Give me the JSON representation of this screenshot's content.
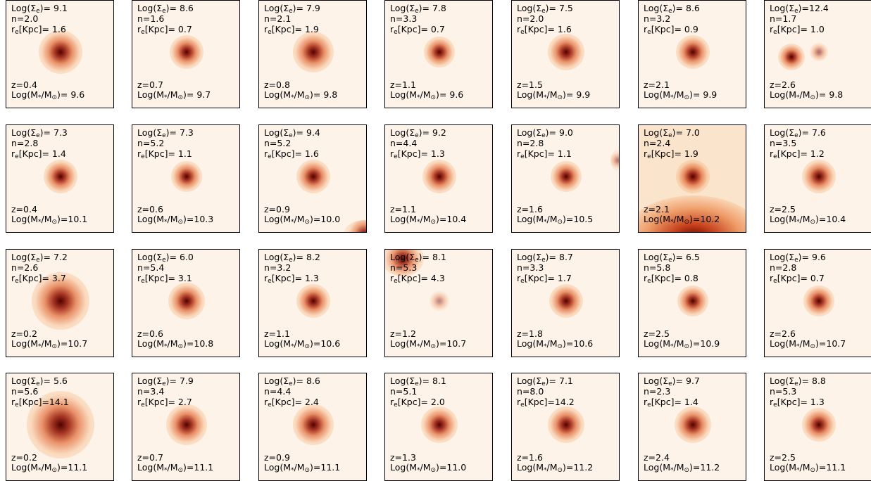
{
  "row_h": 177,
  "panels": [
    {
      "sigma": "9.1",
      "n": "2.0",
      "re": "1.6",
      "z": "0.4",
      "mass": "9.6"
    },
    {
      "sigma": "8.6",
      "n": "1.6",
      "re": "0.7",
      "z": "0.7",
      "mass": "9.7"
    },
    {
      "sigma": "7.9",
      "n": "2.1",
      "re": "1.9",
      "z": "0.8",
      "mass": "9.8"
    },
    {
      "sigma": "7.8",
      "n": "3.3",
      "re": "0.7",
      "z": "1.1",
      "mass": "9.6"
    },
    {
      "sigma": "7.5",
      "n": "2.0",
      "re": "1.6",
      "z": "1.5",
      "mass": "9.9"
    },
    {
      "sigma": "8.6",
      "n": "3.2",
      "re": "0.9",
      "z": "2.1",
      "mass": "9.9"
    },
    {
      "sigma": "12.4",
      "n": "1.7",
      "re": "1.0",
      "z": "2.6",
      "mass": "9.8"
    },
    {
      "sigma": "7.3",
      "n": "2.8",
      "re": "1.4",
      "z": "0.4",
      "mass": "10.1"
    },
    {
      "sigma": "7.3",
      "n": "5.2",
      "re": "1.1",
      "z": "0.6",
      "mass": "10.3"
    },
    {
      "sigma": "9.4",
      "n": "5.2",
      "re": "1.6",
      "z": "0.9",
      "mass": "10.0"
    },
    {
      "sigma": "9.2",
      "n": "4.4",
      "re": "1.3",
      "z": "1.1",
      "mass": "10.4"
    },
    {
      "sigma": "9.0",
      "n": "2.8",
      "re": "1.1",
      "z": "1.6",
      "mass": "10.5"
    },
    {
      "sigma": "7.0",
      "n": "2.4",
      "re": "1.9",
      "z": "2.1",
      "mass": "10.2"
    },
    {
      "sigma": "7.6",
      "n": "3.5",
      "re": "1.2",
      "z": "2.5",
      "mass": "10.4"
    },
    {
      "sigma": "7.2",
      "n": "2.6",
      "re": "3.7",
      "z": "0.2",
      "mass": "10.7"
    },
    {
      "sigma": "6.0",
      "n": "5.4",
      "re": "3.1",
      "z": "0.6",
      "mass": "10.8"
    },
    {
      "sigma": "8.2",
      "n": "3.2",
      "re": "1.3",
      "z": "1.1",
      "mass": "10.6"
    },
    {
      "sigma": "8.1",
      "n": "5.3",
      "re": "4.3",
      "z": "1.2",
      "mass": "10.7"
    },
    {
      "sigma": "8.7",
      "n": "3.3",
      "re": "1.7",
      "z": "1.8",
      "mass": "10.6"
    },
    {
      "sigma": "6.5",
      "n": "5.8",
      "re": "0.8",
      "z": "2.5",
      "mass": "10.9"
    },
    {
      "sigma": "9.6",
      "n": "2.8",
      "re": "0.7",
      "z": "2.6",
      "mass": "10.7"
    },
    {
      "sigma": "5.6",
      "n": "5.6",
      "re": "14.1",
      "z": "0.2",
      "mass": "11.1"
    },
    {
      "sigma": "7.9",
      "n": "3.4",
      "re": "2.7",
      "z": "0.7",
      "mass": "11.1"
    },
    {
      "sigma": "8.6",
      "n": "4.4",
      "re": "2.4",
      "z": "0.9",
      "mass": "11.1"
    },
    {
      "sigma": "8.1",
      "n": "5.1",
      "re": "2.0",
      "z": "1.3",
      "mass": "11.0"
    },
    {
      "sigma": "7.1",
      "n": "8.0",
      "re": "14.2",
      "z": "1.6",
      "mass": "11.2"
    },
    {
      "sigma": "9.7",
      "n": "2.3",
      "re": "1.4",
      "z": "2.4",
      "mass": "11.2"
    },
    {
      "sigma": "8.8",
      "n": "5.3",
      "re": "1.3",
      "z": "2.5",
      "mass": "11.1"
    }
  ]
}
